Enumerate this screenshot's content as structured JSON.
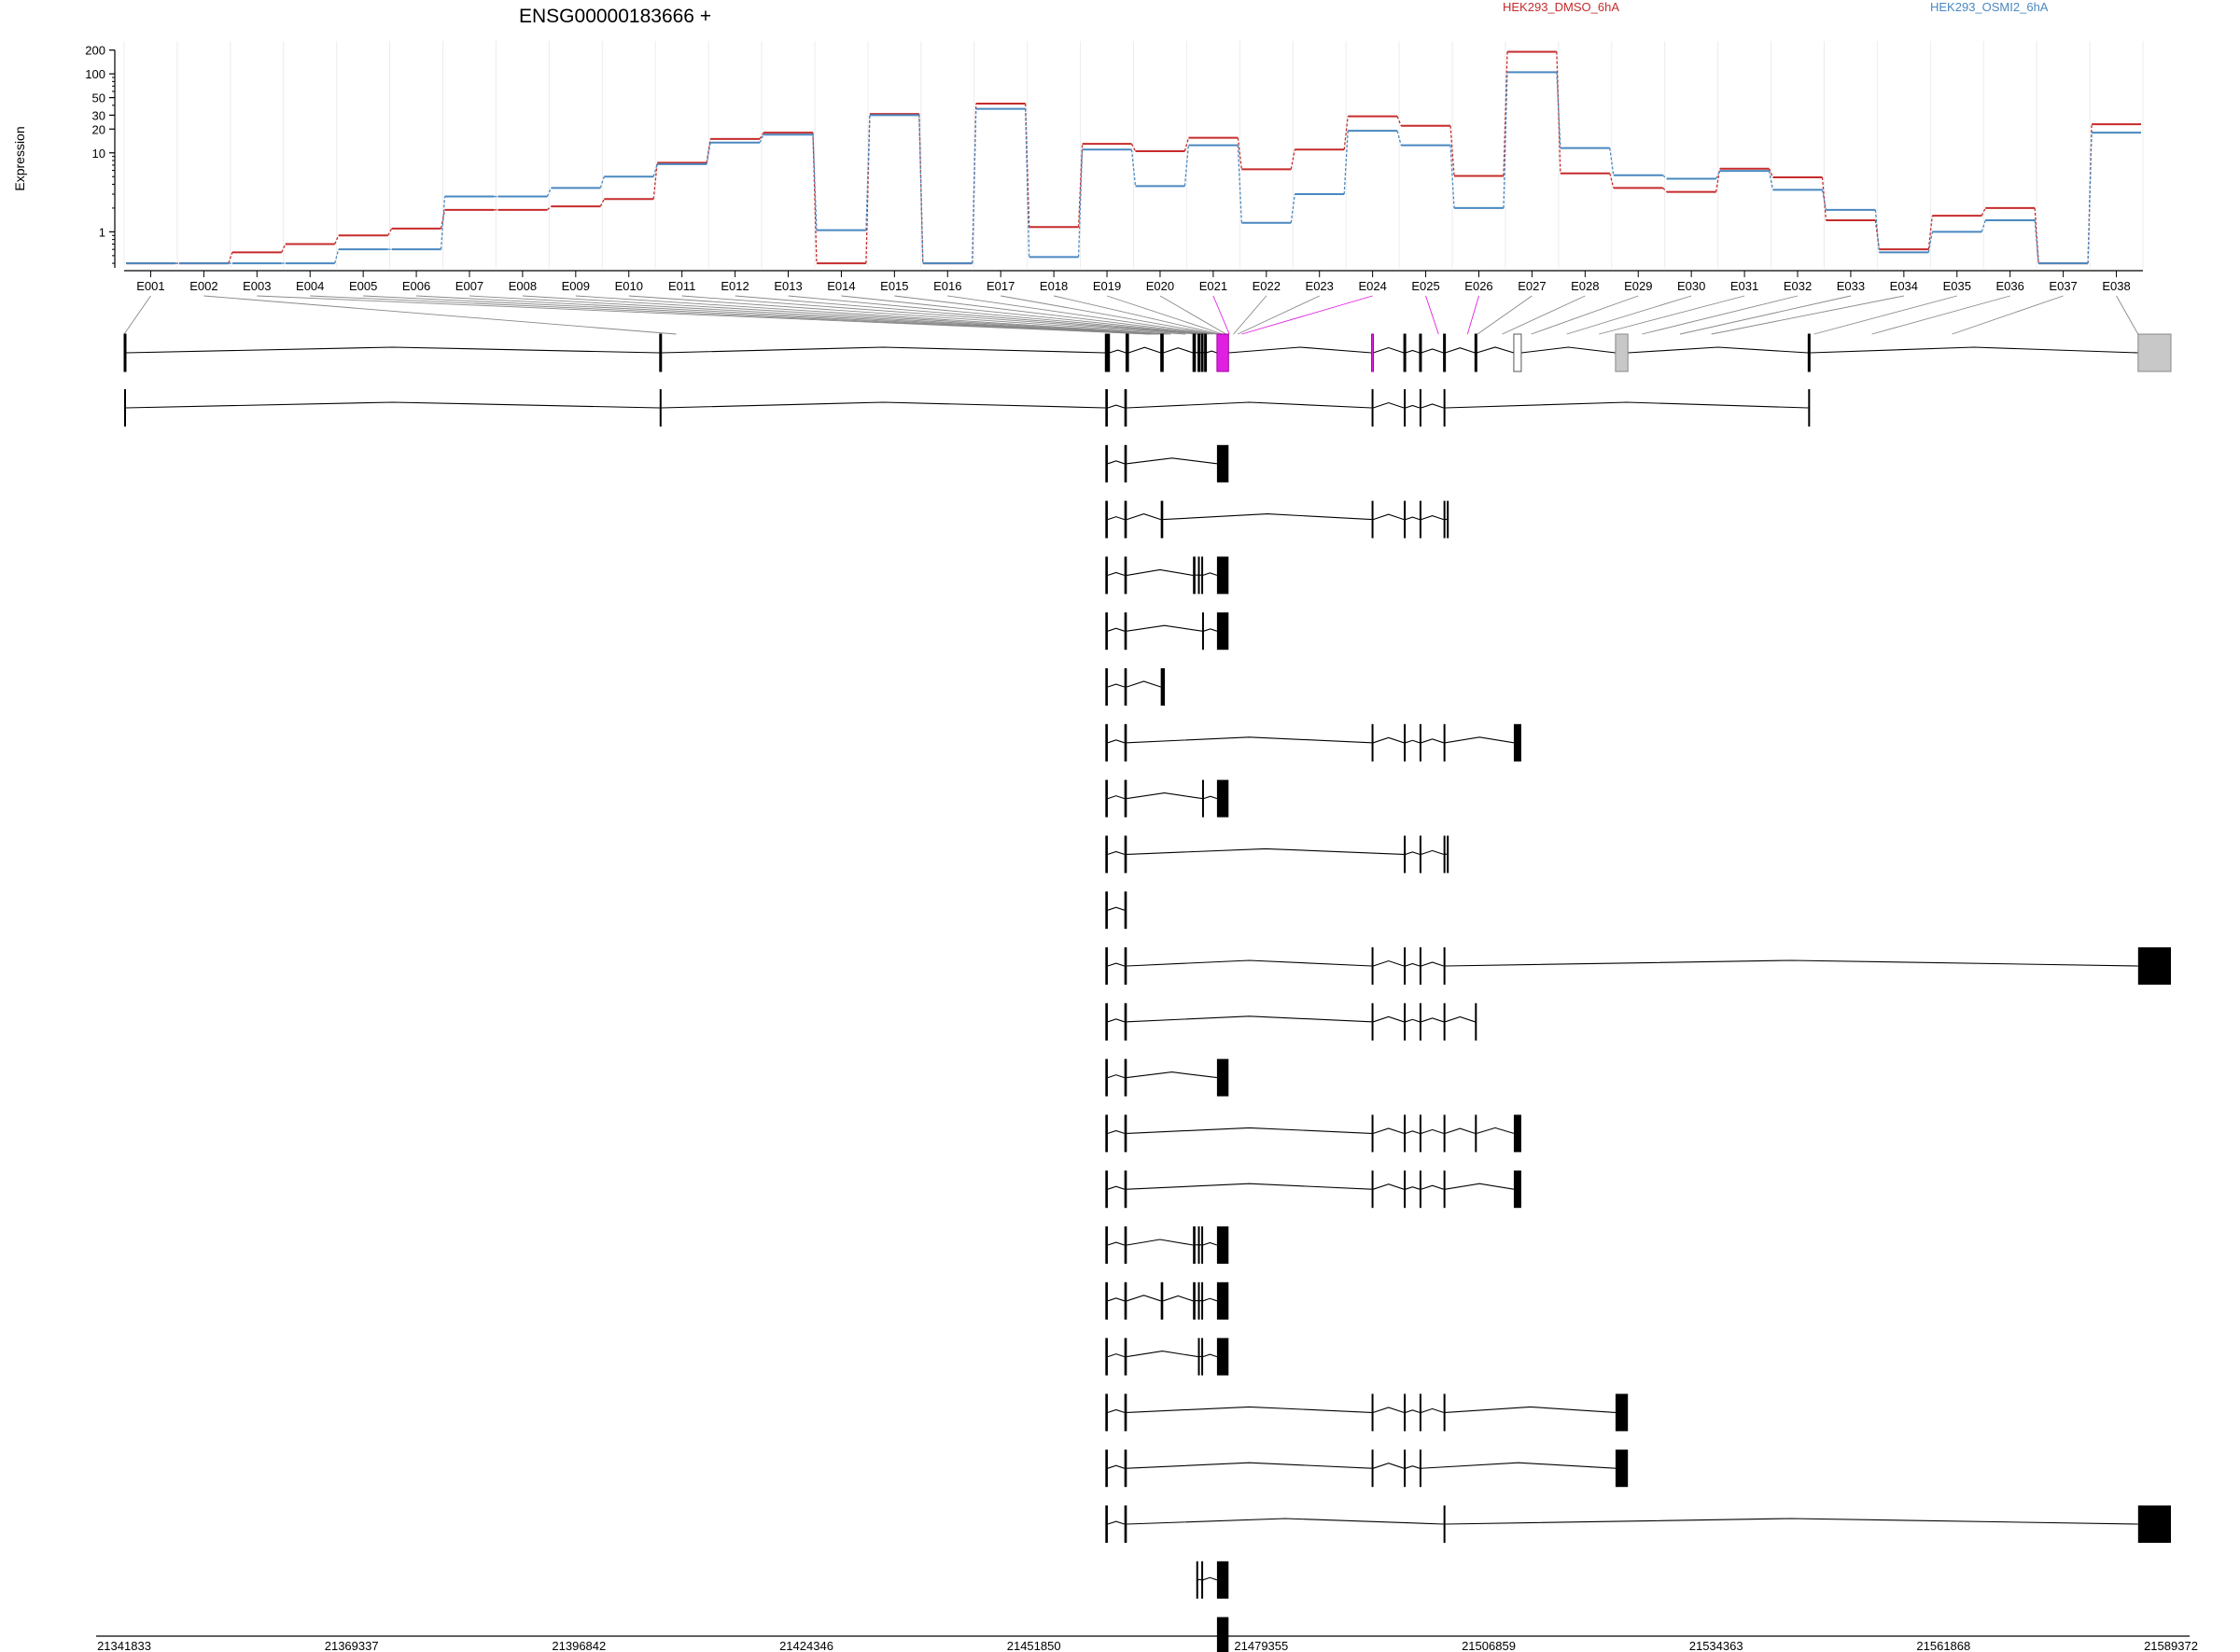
{
  "chart_data": {
    "type": "line",
    "title": "ENSG00000183666 +",
    "ylabel": "Expression",
    "xlabel": "",
    "yscale": "log",
    "ylim": [
      0.35,
      260
    ],
    "yticks": [
      1,
      10,
      20,
      30,
      50,
      100,
      200
    ],
    "grid": "vertical, light",
    "legend_placement": "top-right",
    "categories": [
      "E001",
      "E002",
      "E003",
      "E004",
      "E005",
      "E006",
      "E007",
      "E008",
      "E009",
      "E010",
      "E011",
      "E012",
      "E013",
      "E014",
      "E015",
      "E016",
      "E017",
      "E018",
      "E019",
      "E020",
      "E021",
      "E022",
      "E023",
      "E024",
      "E025",
      "E026",
      "E027",
      "E028",
      "E029",
      "E030",
      "E031",
      "E032",
      "E033",
      "E034",
      "E035",
      "E036",
      "E037",
      "E038"
    ],
    "series": [
      {
        "name": "HEK293_DMSO_6hA",
        "color": "#c62b2b",
        "values": [
          0.4,
          0.4,
          0.55,
          0.7,
          0.9,
          1.1,
          1.9,
          1.9,
          2.1,
          2.6,
          7.5,
          15,
          18,
          0.4,
          31,
          0.4,
          42,
          1.15,
          13,
          10.5,
          15.5,
          6.2,
          11,
          29,
          22,
          5.1,
          190,
          5.5,
          3.6,
          3.2,
          6.3,
          4.9,
          1.4,
          0.6,
          1.6,
          2,
          0.4,
          23
        ]
      },
      {
        "name": "HEK293_OSMI2_6hA",
        "color": "#4a88c0",
        "values": [
          0.4,
          0.4,
          0.4,
          0.4,
          0.6,
          0.6,
          2.8,
          2.8,
          3.6,
          5,
          7.2,
          13.5,
          17,
          1.05,
          30,
          0.4,
          36,
          0.48,
          11,
          3.8,
          12.5,
          1.3,
          3,
          19,
          12.5,
          2,
          105,
          11.5,
          5.2,
          4.7,
          5.9,
          3.4,
          1.9,
          0.55,
          1,
          1.4,
          0.4,
          18
        ]
      }
    ],
    "exon_genomic_start": [
      21341833,
      21408600,
      21465900,
      21466100,
      21466500,
      21466900,
      21467300,
      21468000,
      21468400,
      21470200,
      21471700,
      21472100,
      21472400,
      21472700,
      21473100,
      21473500,
      21473900,
      21474300,
      21474700,
      21475100,
      21475500,
      21476000,
      21476500,
      21477000,
      21500800,
      21504300,
      21505500,
      21508500,
      21512000,
      21516300,
      21520200,
      21525400,
      21530000,
      21533800,
      21546200,
      21553200,
      21562900,
      21585400
    ],
    "genomic_axis": {
      "range": [
        21341833,
        21589372
      ],
      "ticks": [
        21341833,
        21369337,
        21396842,
        21424346,
        21451850,
        21479355,
        21506859,
        21534363,
        21561868,
        21589372
      ]
    },
    "gene_model": {
      "highlight_color": "#e020e0",
      "grey_color": "#c8c8c8",
      "exons": [
        {
          "s": 21341833,
          "e": 21342000
        },
        {
          "s": 21406600,
          "e": 21406800
        },
        {
          "s": 21460500,
          "e": 21461000
        },
        {
          "s": 21463000,
          "e": 21463300
        },
        {
          "s": 21467200,
          "e": 21467500
        },
        {
          "s": 21471100,
          "e": 21471400
        },
        {
          "s": 21471700,
          "e": 21471900
        },
        {
          "s": 21472100,
          "e": 21472300
        },
        {
          "s": 21472500,
          "e": 21472700
        },
        {
          "s": 21474000,
          "e": 21475400,
          "fill": "highlight"
        },
        {
          "s": 21492700,
          "e": 21492900,
          "fill": "highlight"
        },
        {
          "s": 21496600,
          "e": 21496800
        },
        {
          "s": 21498500,
          "e": 21498700
        },
        {
          "s": 21501400,
          "e": 21501600
        },
        {
          "s": 21505200,
          "e": 21505400
        },
        {
          "s": 21509900,
          "e": 21510800,
          "fill": "none"
        },
        {
          "s": 21522200,
          "e": 21523700,
          "fill": "grey"
        },
        {
          "s": 21545500,
          "e": 21545700
        },
        {
          "s": 21585400,
          "e": 21589372,
          "fill": "grey"
        }
      ]
    },
    "transcripts": [
      [
        [
          21341833,
          21342000
        ],
        [
          21406600,
          21406800
        ],
        [
          21460500,
          21460800
        ],
        [
          21462800,
          21463100
        ],
        [
          21492700,
          21492900
        ],
        [
          21496600,
          21496800
        ],
        [
          21498500,
          21498700
        ],
        [
          21501400,
          21501600
        ],
        [
          21545500,
          21545700
        ]
      ],
      [
        [
          21460500,
          21460800
        ],
        [
          21462800,
          21463100
        ],
        [
          21474000,
          21475400
        ]
      ],
      [
        [
          21460500,
          21460800
        ],
        [
          21462800,
          21463100
        ],
        [
          21467200,
          21467500
        ],
        [
          21492700,
          21492900
        ],
        [
          21496600,
          21496800
        ],
        [
          21498500,
          21498700
        ],
        [
          21501400,
          21501600
        ],
        [
          21501800,
          21502000
        ]
      ],
      [
        [
          21460500,
          21460800
        ],
        [
          21462800,
          21463100
        ],
        [
          21471100,
          21471400
        ],
        [
          21471700,
          21471900
        ],
        [
          21472100,
          21472300
        ],
        [
          21474000,
          21475400
        ]
      ],
      [
        [
          21460500,
          21460800
        ],
        [
          21462800,
          21463100
        ],
        [
          21472200,
          21472400
        ],
        [
          21474000,
          21475400
        ]
      ],
      [
        [
          21460500,
          21460800
        ],
        [
          21462800,
          21463100
        ],
        [
          21467200,
          21467700
        ]
      ],
      [
        [
          21460500,
          21460800
        ],
        [
          21462800,
          21463100
        ],
        [
          21492700,
          21492900
        ],
        [
          21496600,
          21496800
        ],
        [
          21498500,
          21498700
        ],
        [
          21501400,
          21501600
        ],
        [
          21509900,
          21510800
        ]
      ],
      [
        [
          21460500,
          21460800
        ],
        [
          21462800,
          21463100
        ],
        [
          21472200,
          21472400
        ],
        [
          21474000,
          21475400
        ]
      ],
      [
        [
          21460500,
          21460800
        ],
        [
          21462800,
          21463100
        ],
        [
          21496600,
          21496800
        ],
        [
          21498500,
          21498700
        ],
        [
          21501400,
          21501600
        ],
        [
          21501800,
          21502000
        ]
      ],
      [
        [
          21460500,
          21460800
        ],
        [
          21462800,
          21463100
        ]
      ],
      [
        [
          21460500,
          21460800
        ],
        [
          21462800,
          21463100
        ],
        [
          21492700,
          21492900
        ],
        [
          21496600,
          21496800
        ],
        [
          21498500,
          21498700
        ],
        [
          21501400,
          21501600
        ],
        [
          21585400,
          21589372
        ]
      ],
      [
        [
          21460500,
          21460800
        ],
        [
          21462800,
          21463100
        ],
        [
          21492700,
          21492900
        ],
        [
          21496600,
          21496800
        ],
        [
          21498500,
          21498700
        ],
        [
          21501400,
          21501600
        ],
        [
          21505200,
          21505400
        ]
      ],
      [
        [
          21460500,
          21460800
        ],
        [
          21462800,
          21463100
        ],
        [
          21474000,
          21475400
        ]
      ],
      [
        [
          21460500,
          21460800
        ],
        [
          21462800,
          21463100
        ],
        [
          21492700,
          21492900
        ],
        [
          21496600,
          21496800
        ],
        [
          21498500,
          21498700
        ],
        [
          21501400,
          21501600
        ],
        [
          21505200,
          21505400
        ],
        [
          21509900,
          21510800
        ]
      ],
      [
        [
          21460500,
          21460800
        ],
        [
          21462800,
          21463100
        ],
        [
          21492700,
          21492900
        ],
        [
          21496600,
          21496800
        ],
        [
          21498500,
          21498700
        ],
        [
          21501400,
          21501600
        ],
        [
          21509900,
          21510800
        ]
      ],
      [
        [
          21460500,
          21460800
        ],
        [
          21462800,
          21463100
        ],
        [
          21471100,
          21471400
        ],
        [
          21471700,
          21471900
        ],
        [
          21472100,
          21472300
        ],
        [
          21474000,
          21475400
        ]
      ],
      [
        [
          21460500,
          21460800
        ],
        [
          21462800,
          21463100
        ],
        [
          21467200,
          21467500
        ],
        [
          21471100,
          21471400
        ],
        [
          21471700,
          21471900
        ],
        [
          21472100,
          21472300
        ],
        [
          21474000,
          21475400
        ]
      ],
      [
        [
          21460500,
          21460800
        ],
        [
          21462800,
          21463100
        ],
        [
          21471700,
          21471900
        ],
        [
          21472100,
          21472300
        ],
        [
          21474000,
          21475400
        ]
      ],
      [
        [
          21460500,
          21460800
        ],
        [
          21462800,
          21463100
        ],
        [
          21492700,
          21492900
        ],
        [
          21496600,
          21496800
        ],
        [
          21498500,
          21498700
        ],
        [
          21501400,
          21501600
        ],
        [
          21522200,
          21523700
        ]
      ],
      [
        [
          21460500,
          21460800
        ],
        [
          21462800,
          21463100
        ],
        [
          21492700,
          21492900
        ],
        [
          21496600,
          21496800
        ],
        [
          21498500,
          21498700
        ],
        [
          21522200,
          21523700
        ]
      ],
      [
        [
          21460500,
          21460800
        ],
        [
          21462800,
          21463100
        ],
        [
          21501400,
          21501600
        ],
        [
          21585400,
          21589372
        ]
      ],
      [
        [
          21471500,
          21471700
        ],
        [
          21472100,
          21472300
        ],
        [
          21474000,
          21475400
        ]
      ],
      [
        [
          21474000,
          21475400
        ]
      ]
    ]
  }
}
